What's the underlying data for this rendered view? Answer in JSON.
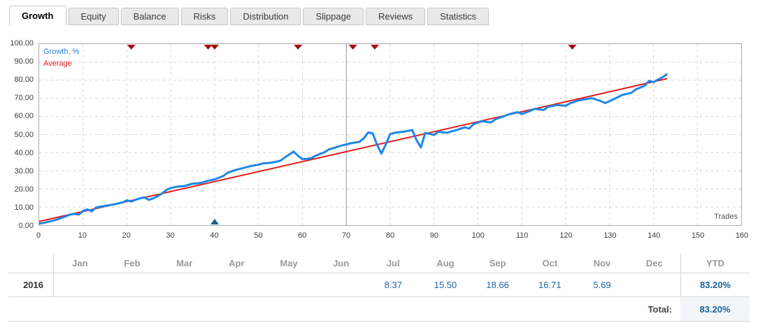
{
  "tabs": [
    {
      "label": "Growth",
      "active": true
    },
    {
      "label": "Equity",
      "active": false
    },
    {
      "label": "Balance",
      "active": false
    },
    {
      "label": "Risks",
      "active": false
    },
    {
      "label": "Distribution",
      "active": false
    },
    {
      "label": "Slippage",
      "active": false
    },
    {
      "label": "Reviews",
      "active": false
    },
    {
      "label": "Statistics",
      "active": false
    }
  ],
  "chart": {
    "legend": [
      {
        "label": "Growth, %",
        "color": "#2b7fd0"
      },
      {
        "label": "Average",
        "color": "#e31b1b"
      }
    ],
    "trades_label": "Trades",
    "y_ticks": [
      "100.00",
      "90.00",
      "80.00",
      "70.00",
      "60.00",
      "50.00",
      "40.00",
      "30.00",
      "20.00",
      "10.00",
      "0.00"
    ],
    "x_ticks": [
      "0",
      "10",
      "20",
      "30",
      "40",
      "50",
      "60",
      "70",
      "80",
      "90",
      "100",
      "110",
      "120",
      "130",
      "140",
      "150",
      "160"
    ]
  },
  "chart_data": {
    "type": "line",
    "title": "",
    "xlabel": "Trades",
    "ylabel": "Growth, %",
    "xlim": [
      0,
      160
    ],
    "ylim": [
      0,
      100
    ],
    "x_tick_step": 10,
    "y_tick_step": 10,
    "grid": true,
    "legend_position": "top-left",
    "series": [
      {
        "name": "Growth, %",
        "color": "#1e87e8",
        "width": 3,
        "points": [
          [
            0,
            0.8
          ],
          [
            1,
            1.2
          ],
          [
            2,
            1.8
          ],
          [
            3,
            2.4
          ],
          [
            4,
            3.0
          ],
          [
            5,
            3.9
          ],
          [
            6,
            4.8
          ],
          [
            7,
            5.8
          ],
          [
            8,
            6.2
          ],
          [
            9,
            5.8
          ],
          [
            10,
            7.9
          ],
          [
            11,
            8.7
          ],
          [
            12,
            7.6
          ],
          [
            13,
            9.8
          ],
          [
            14,
            10.2
          ],
          [
            15,
            10.6
          ],
          [
            16,
            11.0
          ],
          [
            17,
            11.4
          ],
          [
            18,
            12.0
          ],
          [
            19,
            12.5
          ],
          [
            20,
            13.7
          ],
          [
            21,
            13.0
          ],
          [
            22,
            14.0
          ],
          [
            23,
            14.8
          ],
          [
            24,
            15.3
          ],
          [
            25,
            13.9
          ],
          [
            26,
            14.8
          ],
          [
            27,
            16.0
          ],
          [
            28,
            17.5
          ],
          [
            29,
            19.4
          ],
          [
            30,
            20.5
          ],
          [
            31,
            21.1
          ],
          [
            32,
            21.4
          ],
          [
            33,
            21.5
          ],
          [
            34,
            22.2
          ],
          [
            35,
            22.9
          ],
          [
            36,
            23.1
          ],
          [
            37,
            23.4
          ],
          [
            38,
            24.2
          ],
          [
            39,
            24.8
          ],
          [
            40,
            25.3
          ],
          [
            41,
            26.2
          ],
          [
            42,
            27.2
          ],
          [
            43,
            29.0
          ],
          [
            44,
            29.8
          ],
          [
            45,
            30.6
          ],
          [
            46,
            31.2
          ],
          [
            47,
            31.8
          ],
          [
            48,
            32.5
          ],
          [
            49,
            33.0
          ],
          [
            50,
            33.4
          ],
          [
            51,
            34.1
          ],
          [
            52,
            34.3
          ],
          [
            53,
            34.5
          ],
          [
            54,
            35.0
          ],
          [
            55,
            35.6
          ],
          [
            56,
            37.4
          ],
          [
            57,
            39.0
          ],
          [
            58,
            40.6
          ],
          [
            59,
            38.3
          ],
          [
            60,
            36.4
          ],
          [
            61,
            36.6
          ],
          [
            62,
            36.9
          ],
          [
            63,
            38.3
          ],
          [
            64,
            39.3
          ],
          [
            65,
            40.2
          ],
          [
            66,
            41.8
          ],
          [
            67,
            42.5
          ],
          [
            68,
            43.3
          ],
          [
            69,
            44.0
          ],
          [
            70,
            44.5
          ],
          [
            71,
            45.2
          ],
          [
            72,
            45.6
          ],
          [
            73,
            46.0
          ],
          [
            74,
            48.0
          ],
          [
            75,
            51.2
          ],
          [
            76,
            50.7
          ],
          [
            77,
            44.4
          ],
          [
            78,
            39.5
          ],
          [
            79,
            44.5
          ],
          [
            80,
            50.3
          ],
          [
            81,
            51.0
          ],
          [
            82,
            51.3
          ],
          [
            83,
            51.6
          ],
          [
            84,
            52.0
          ],
          [
            85,
            52.5
          ],
          [
            86,
            47.0
          ],
          [
            87,
            42.9
          ],
          [
            88,
            51.0
          ],
          [
            89,
            50.3
          ],
          [
            90,
            49.8
          ],
          [
            91,
            51.6
          ],
          [
            92,
            51.2
          ],
          [
            93,
            51.0
          ],
          [
            94,
            51.8
          ],
          [
            95,
            52.4
          ],
          [
            96,
            53.2
          ],
          [
            97,
            54.0
          ],
          [
            98,
            53.3
          ],
          [
            99,
            55.8
          ],
          [
            100,
            56.6
          ],
          [
            101,
            57.4
          ],
          [
            102,
            57.0
          ],
          [
            103,
            56.7
          ],
          [
            104,
            58.5
          ],
          [
            105,
            59.4
          ],
          [
            106,
            60.2
          ],
          [
            107,
            61.2
          ],
          [
            108,
            61.8
          ],
          [
            109,
            62.4
          ],
          [
            110,
            61.3
          ],
          [
            111,
            62.2
          ],
          [
            112,
            63.2
          ],
          [
            113,
            64.3
          ],
          [
            114,
            63.9
          ],
          [
            115,
            63.6
          ],
          [
            116,
            65.4
          ],
          [
            117,
            65.8
          ],
          [
            118,
            66.3
          ],
          [
            119,
            66.1
          ],
          [
            120,
            65.9
          ],
          [
            121,
            67.3
          ],
          [
            122,
            68.1
          ],
          [
            123,
            68.9
          ],
          [
            124,
            69.3
          ],
          [
            125,
            69.7
          ],
          [
            126,
            70.1
          ],
          [
            127,
            69.3
          ],
          [
            128,
            68.5
          ],
          [
            129,
            67.4
          ],
          [
            130,
            68.5
          ],
          [
            131,
            69.6
          ],
          [
            132,
            70.8
          ],
          [
            133,
            72.0
          ],
          [
            134,
            72.5
          ],
          [
            135,
            73.1
          ],
          [
            136,
            75.0
          ],
          [
            137,
            76.0
          ],
          [
            138,
            77.0
          ],
          [
            139,
            79.7
          ],
          [
            140,
            78.9
          ],
          [
            141,
            80.4
          ],
          [
            142,
            81.5
          ],
          [
            143,
            83.2
          ]
        ]
      },
      {
        "name": "Average",
        "color": "#e31b1b",
        "width": 2,
        "points": [
          [
            0,
            2.0
          ],
          [
            143,
            80.8
          ]
        ]
      }
    ],
    "annotations": {
      "top_markers_color": "#a50d0d",
      "top_markers_x": [
        21,
        38.5,
        40,
        59,
        71.5,
        76.5,
        121.5
      ],
      "bottom_marker_color": "#1d5e8f",
      "bottom_marker_x": 40,
      "vline_x": 70
    }
  },
  "table": {
    "columns": [
      "Jan",
      "Feb",
      "Mar",
      "Apr",
      "May",
      "Jun",
      "Jul",
      "Aug",
      "Sep",
      "Oct",
      "Nov",
      "Dec"
    ],
    "ytd_header": "YTD",
    "rows": [
      {
        "year": "2016",
        "values": {
          "Jan": "",
          "Feb": "",
          "Mar": "",
          "Apr": "",
          "May": "",
          "Jun": "",
          "Jul": "8.37",
          "Aug": "15.50",
          "Sep": "18.66",
          "Oct": "16.71",
          "Nov": "5.69",
          "Dec": ""
        },
        "ytd": "83.20%"
      }
    ],
    "total_label": "Total:",
    "total_value": "83.20%"
  }
}
